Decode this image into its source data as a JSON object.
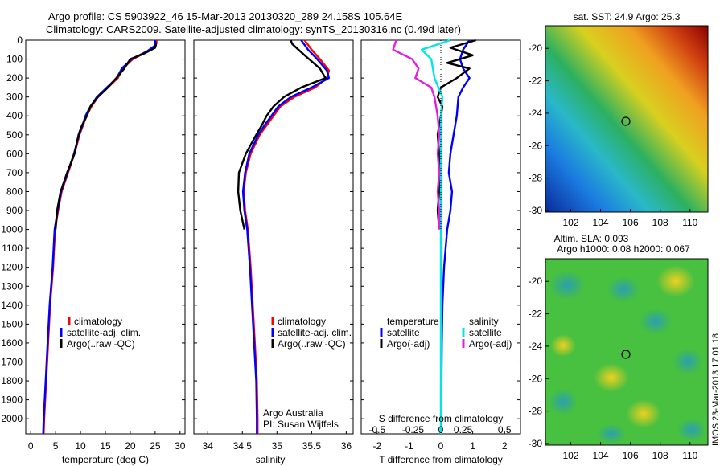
{
  "header": {
    "line1": "Argo profile: CS 5903922_46 15-Mar-2013 20130320_289 24.158S 105.64E",
    "line2": "Climatology: CARS2009. Satellite-adjusted climatology: synTS_20130316.nc (0.49d later)"
  },
  "colors": {
    "red": "#ff0000",
    "blue": "#0000ff",
    "black": "#000000",
    "cyan": "#00e5e5",
    "magenta": "#e020e0"
  },
  "depth_axis": {
    "ticks": [
      0,
      100,
      200,
      300,
      400,
      500,
      600,
      700,
      800,
      900,
      1000,
      1100,
      1200,
      1300,
      1400,
      1500,
      1600,
      1700,
      1800,
      1900,
      2000
    ],
    "ylim": [
      0,
      2080
    ]
  },
  "panels": {
    "temperature": {
      "xlabel": "temperature (deg C)",
      "xticks": [
        0,
        5,
        10,
        15,
        20,
        25,
        30
      ]
    },
    "salinity": {
      "xlabel": "salinity",
      "xticks": [
        34,
        34.5,
        35,
        35.5,
        36
      ]
    },
    "difference": {
      "xlabel_bottom": "T difference from climatology",
      "xlabel_top": "S difference from climatology",
      "xticks_bottom": [
        -2,
        -1,
        0,
        1,
        2
      ],
      "xticks_top": [
        "-0.5",
        "-0.25",
        "0",
        "0.25",
        "0.5"
      ]
    }
  },
  "legend": {
    "climatology": "climatology",
    "satellite_adj": "satellite-adj. clim.",
    "argo_raw": "Argo(..raw -QC)",
    "temperature_title": "temperature",
    "salinity_title": "salinity",
    "satellite": "satellite",
    "argo_adj": "Argo(-adj)"
  },
  "annotation": {
    "line1": "Argo Australia",
    "line2": "PI: Susan Wijffels"
  },
  "maps": {
    "sst": {
      "title": "sat. SST: 24.9 Argo: 25.3",
      "yticks": [
        -20,
        -22,
        -24,
        -26,
        -28,
        -30
      ],
      "xticks": [
        102,
        104,
        106,
        108,
        110
      ]
    },
    "sla": {
      "title_line1": "Altim. SLA: 0.093",
      "title_line2": "Argo h1000: 0.08 h2000: 0.067",
      "yticks": [
        -20,
        -22,
        -24,
        -26,
        -28,
        -30
      ],
      "xticks": [
        102,
        104,
        106,
        108,
        110
      ]
    },
    "argo_position": {
      "lon": 105.64,
      "lat": -24.158
    }
  },
  "watermark": "IMOS 23-Mar-2013 17:01:18",
  "chart_data": [
    {
      "type": "line",
      "xlabel": "temperature (deg C)",
      "ylabel": "",
      "xlim": [
        -1,
        31
      ],
      "ylim": [
        0,
        2080
      ],
      "series": [
        {
          "name": "climatology",
          "color": "#ff0000",
          "points": [
            [
              25.3,
              0
            ],
            [
              25.1,
              30
            ],
            [
              23.5,
              60
            ],
            [
              20.5,
              100
            ],
            [
              18.5,
              150
            ],
            [
              17.5,
              200
            ],
            [
              15.5,
              250
            ],
            [
              13.5,
              300
            ],
            [
              12.2,
              350
            ],
            [
              11.2,
              400
            ],
            [
              10.5,
              450
            ],
            [
              9.8,
              500
            ],
            [
              8.8,
              600
            ],
            [
              7.5,
              700
            ],
            [
              6.2,
              800
            ],
            [
              5.5,
              900
            ],
            [
              4.9,
              1000
            ],
            [
              4.5,
              1200
            ],
            [
              3.9,
              1400
            ],
            [
              3.5,
              1600
            ],
            [
              3.1,
              1800
            ],
            [
              2.7,
              2000
            ],
            [
              2.6,
              2080
            ]
          ]
        },
        {
          "name": "satellite-adj. clim.",
          "color": "#0000ff",
          "points": [
            [
              25.0,
              0
            ],
            [
              24.9,
              30
            ],
            [
              23.3,
              60
            ],
            [
              20.3,
              100
            ],
            [
              18.3,
              150
            ],
            [
              17.3,
              200
            ],
            [
              15.3,
              250
            ],
            [
              13.3,
              300
            ],
            [
              12.0,
              350
            ],
            [
              11.0,
              400
            ],
            [
              10.4,
              450
            ],
            [
              9.7,
              500
            ],
            [
              8.7,
              600
            ],
            [
              7.4,
              700
            ],
            [
              6.1,
              800
            ],
            [
              5.4,
              900
            ],
            [
              4.8,
              1000
            ],
            [
              4.4,
              1200
            ],
            [
              3.8,
              1400
            ],
            [
              3.4,
              1600
            ],
            [
              3.0,
              1800
            ],
            [
              2.6,
              2000
            ],
            [
              2.5,
              2080
            ]
          ]
        },
        {
          "name": "Argo(..raw -QC)",
          "color": "#000000",
          "points": [
            [
              25.3,
              10
            ],
            [
              25.0,
              40
            ],
            [
              22.8,
              70
            ],
            [
              20.0,
              100
            ],
            [
              18.8,
              150
            ],
            [
              17.2,
              200
            ],
            [
              15.5,
              250
            ],
            [
              13.5,
              300
            ],
            [
              12.0,
              350
            ],
            [
              11.3,
              400
            ],
            [
              10.3,
              450
            ],
            [
              9.6,
              500
            ],
            [
              8.8,
              600
            ],
            [
              7.3,
              700
            ],
            [
              6.0,
              800
            ],
            [
              5.3,
              900
            ],
            [
              5.0,
              1000
            ]
          ]
        }
      ]
    },
    {
      "type": "line",
      "xlabel": "salinity",
      "ylabel": "",
      "xlim": [
        33.8,
        36.1
      ],
      "ylim": [
        0,
        2080
      ],
      "series": [
        {
          "name": "climatology",
          "color": "#ff0000",
          "points": [
            [
              35.4,
              0
            ],
            [
              35.5,
              50
            ],
            [
              35.62,
              100
            ],
            [
              35.75,
              160
            ],
            [
              35.72,
              200
            ],
            [
              35.55,
              250
            ],
            [
              35.25,
              300
            ],
            [
              35.05,
              350
            ],
            [
              34.95,
              400
            ],
            [
              34.85,
              450
            ],
            [
              34.75,
              500
            ],
            [
              34.62,
              600
            ],
            [
              34.55,
              700
            ],
            [
              34.52,
              800
            ],
            [
              34.54,
              900
            ],
            [
              34.58,
              1000
            ],
            [
              34.62,
              1200
            ],
            [
              34.65,
              1400
            ],
            [
              34.68,
              1600
            ],
            [
              34.71,
              1800
            ],
            [
              34.72,
              2000
            ],
            [
              34.72,
              2080
            ]
          ]
        },
        {
          "name": "satellite-adj. clim.",
          "color": "#0000ff",
          "points": [
            [
              35.35,
              0
            ],
            [
              35.45,
              50
            ],
            [
              35.58,
              100
            ],
            [
              35.72,
              160
            ],
            [
              35.75,
              200
            ],
            [
              35.5,
              250
            ],
            [
              35.2,
              300
            ],
            [
              35.02,
              350
            ],
            [
              34.92,
              400
            ],
            [
              34.82,
              450
            ],
            [
              34.73,
              500
            ],
            [
              34.6,
              600
            ],
            [
              34.54,
              700
            ],
            [
              34.51,
              800
            ],
            [
              34.53,
              900
            ],
            [
              34.57,
              1000
            ],
            [
              34.61,
              1200
            ],
            [
              34.64,
              1400
            ],
            [
              34.67,
              1600
            ],
            [
              34.7,
              1800
            ],
            [
              34.71,
              2000
            ],
            [
              34.71,
              2080
            ]
          ]
        },
        {
          "name": "Argo(..raw -QC)",
          "color": "#000000",
          "points": [
            [
              35.2,
              0
            ],
            [
              35.22,
              20
            ],
            [
              35.4,
              80
            ],
            [
              35.62,
              150
            ],
            [
              35.7,
              200
            ],
            [
              35.35,
              250
            ],
            [
              35.1,
              300
            ],
            [
              34.95,
              350
            ],
            [
              34.85,
              400
            ],
            [
              34.78,
              450
            ],
            [
              34.7,
              500
            ],
            [
              34.55,
              600
            ],
            [
              34.45,
              700
            ],
            [
              34.44,
              800
            ],
            [
              34.47,
              900
            ],
            [
              34.53,
              1000
            ]
          ]
        }
      ]
    },
    {
      "type": "line",
      "xlabel": "T difference from climatology",
      "ylabel": "",
      "xlim": [
        -2.5,
        2.5
      ],
      "ylim": [
        0,
        2080
      ],
      "series": [
        {
          "name": "temperature satellite",
          "color": "#0000ff",
          "points": [
            [
              0.9,
              0
            ],
            [
              0.7,
              50
            ],
            [
              0.6,
              100
            ],
            [
              0.7,
              150
            ],
            [
              0.9,
              200
            ],
            [
              0.7,
              250
            ],
            [
              0.55,
              300
            ],
            [
              0.5,
              400
            ],
            [
              0.4,
              500
            ],
            [
              0.3,
              600
            ],
            [
              0.25,
              700
            ],
            [
              0.35,
              800
            ],
            [
              0.3,
              900
            ],
            [
              0.2,
              1000
            ],
            [
              0.1,
              1200
            ],
            [
              0.05,
              1400
            ],
            [
              0.03,
              1600
            ],
            [
              0.02,
              1800
            ],
            [
              0.01,
              2000
            ],
            [
              0.0,
              2080
            ]
          ]
        },
        {
          "name": "temperature Argo(-adj)",
          "color": "#000000",
          "points": [
            [
              1.1,
              0
            ],
            [
              0.3,
              40
            ],
            [
              1.0,
              80
            ],
            [
              0.2,
              120
            ],
            [
              0.9,
              150
            ],
            [
              0.5,
              200
            ],
            [
              0.0,
              250
            ],
            [
              -0.1,
              300
            ],
            [
              0.05,
              350
            ],
            [
              0.0,
              400
            ],
            [
              -0.1,
              500
            ],
            [
              -0.05,
              600
            ],
            [
              0.0,
              700
            ],
            [
              -0.05,
              800
            ],
            [
              -0.1,
              900
            ],
            [
              -0.05,
              1000
            ]
          ]
        },
        {
          "name": "salinity satellite",
          "color": "#00e5e5",
          "points": [
            [
              0.3,
              0
            ],
            [
              -0.6,
              50
            ],
            [
              -0.3,
              100
            ],
            [
              -0.2,
              200
            ],
            [
              0.05,
              300
            ],
            [
              0.0,
              400
            ],
            [
              0.0,
              500
            ],
            [
              0.0,
              700
            ],
            [
              0.0,
              900
            ],
            [
              0.0,
              1200
            ],
            [
              0.0,
              1500
            ],
            [
              0.0,
              1800
            ],
            [
              0.0,
              2080
            ]
          ]
        },
        {
          "name": "salinity Argo(-adj)",
          "color": "#e020e0",
          "points": [
            [
              -1.4,
              0
            ],
            [
              -1.5,
              50
            ],
            [
              -0.9,
              100
            ],
            [
              -0.7,
              150
            ],
            [
              -0.8,
              200
            ],
            [
              -0.3,
              250
            ],
            [
              -0.2,
              300
            ],
            [
              -0.1,
              400
            ],
            [
              -0.05,
              500
            ],
            [
              -0.1,
              600
            ],
            [
              -0.05,
              700
            ],
            [
              -0.1,
              800
            ],
            [
              -0.05,
              900
            ],
            [
              -0.05,
              1000
            ]
          ]
        }
      ]
    }
  ]
}
